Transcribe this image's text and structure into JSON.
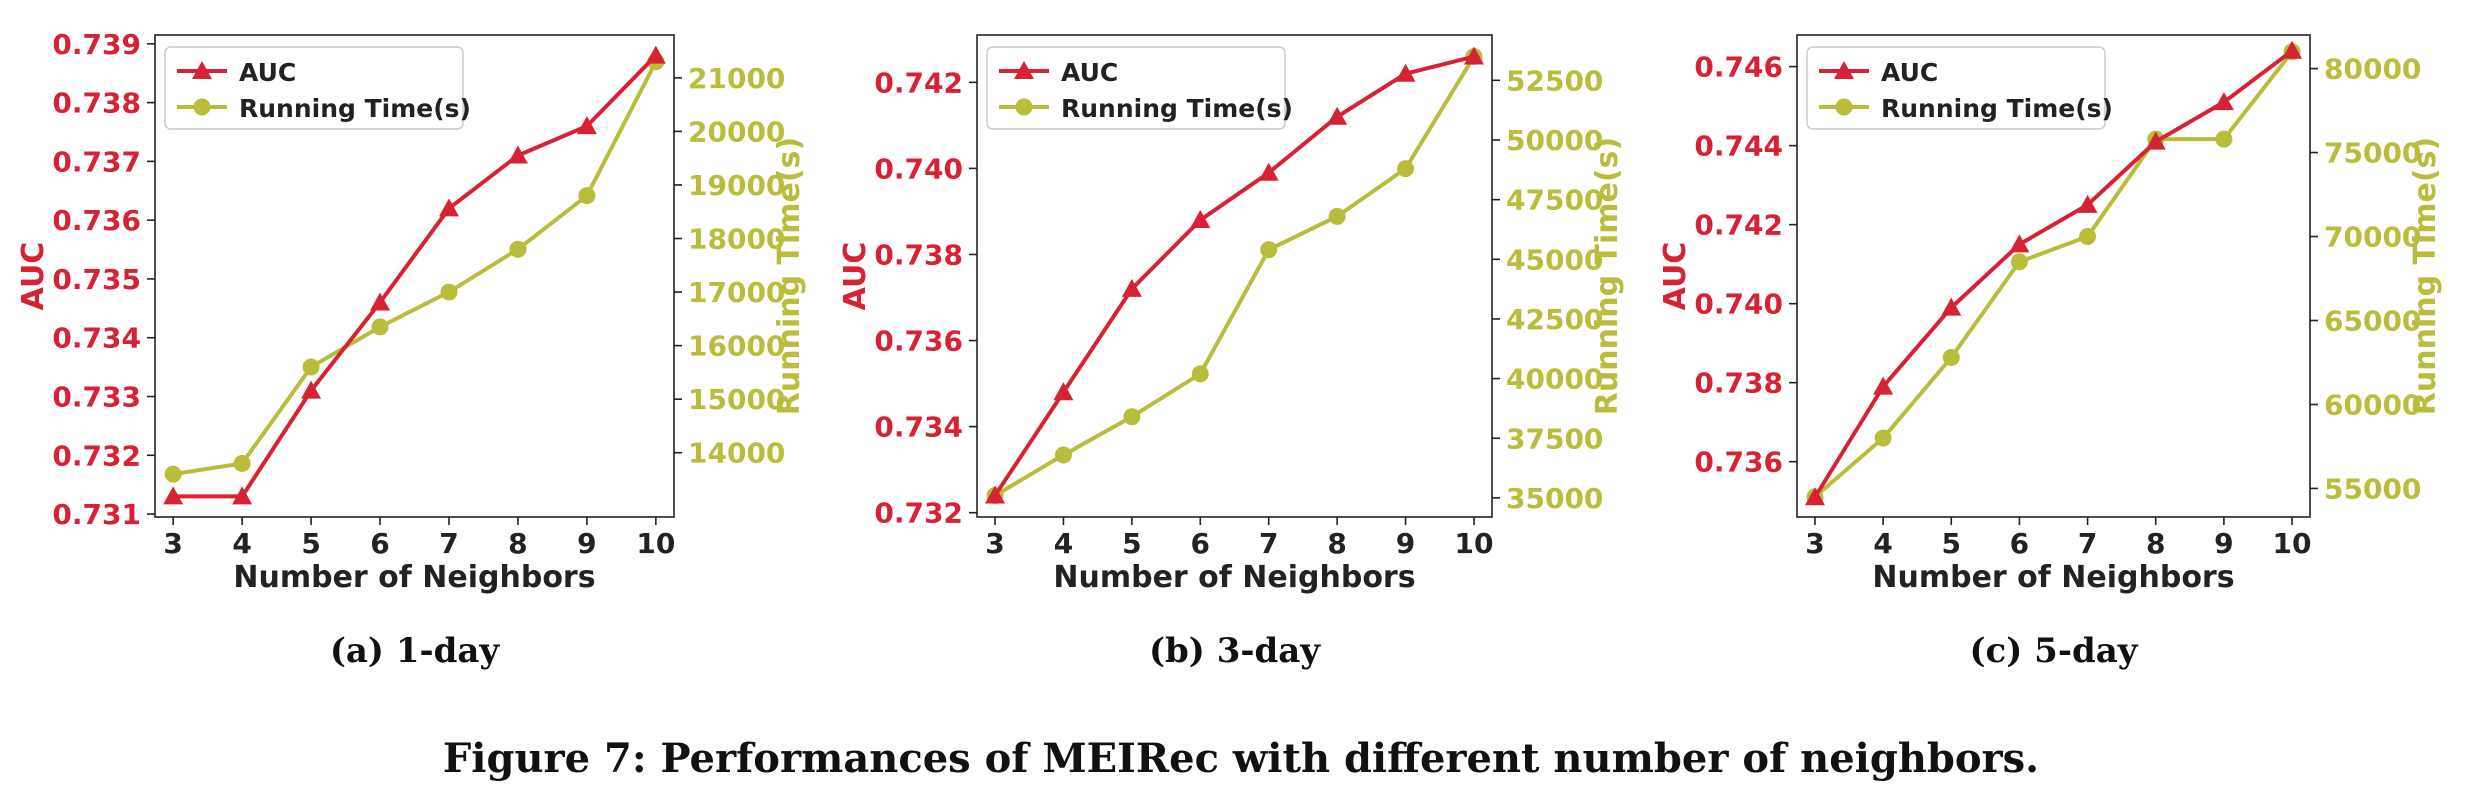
{
  "figure_caption": "Figure 7: Performances of MEIRec with different number of neighbors.",
  "colors": {
    "auc": "#d62233",
    "time": "#b9bd3b",
    "axis": "#222222"
  },
  "chart_data": [
    {
      "type": "line",
      "subcaption": "(a) 1-day",
      "xlabel": "Number of Neighbors",
      "ylabel_left": "AUC",
      "ylabel_right": "Running Time(s)",
      "legend": [
        "AUC",
        "Running Time(s)"
      ],
      "legend_position": "upper-left",
      "x": [
        3,
        4,
        5,
        6,
        7,
        8,
        9,
        10
      ],
      "xticks": [
        "3",
        "4",
        "5",
        "6",
        "7",
        "8",
        "9",
        "10"
      ],
      "series": [
        {
          "name": "AUC",
          "axis": "left",
          "marker": "triangle",
          "values": [
            0.7313,
            0.7313,
            0.7331,
            0.7346,
            0.7362,
            0.7371,
            0.7376,
            0.7388
          ]
        },
        {
          "name": "Running Time(s)",
          "axis": "right",
          "marker": "circle",
          "values": [
            13600,
            13800,
            15600,
            16350,
            17000,
            17800,
            18800,
            21300
          ]
        }
      ],
      "ylim_left": [
        0.73095,
        0.73915
      ],
      "yticks_left": [
        "0.731",
        "0.732",
        "0.733",
        "0.734",
        "0.735",
        "0.736",
        "0.737",
        "0.738",
        "0.739"
      ],
      "ylim_right": [
        12800,
        21800
      ],
      "yticks_right": [
        "14000",
        "15000",
        "16000",
        "17000",
        "18000",
        "19000",
        "20000",
        "21000"
      ]
    },
    {
      "type": "line",
      "subcaption": "(b) 3-day",
      "xlabel": "Number of Neighbors",
      "ylabel_left": "AUC",
      "ylabel_right": "Running Time(s)",
      "legend": [
        "AUC",
        "Running Time(s)"
      ],
      "legend_position": "upper-left",
      "x": [
        3,
        4,
        5,
        6,
        7,
        8,
        9,
        10
      ],
      "xticks": [
        "3",
        "4",
        "5",
        "6",
        "7",
        "8",
        "9",
        "10"
      ],
      "series": [
        {
          "name": "AUC",
          "axis": "left",
          "marker": "triangle",
          "values": [
            0.7324,
            0.7348,
            0.7372,
            0.7388,
            0.7399,
            0.7412,
            0.7422,
            0.7426
          ]
        },
        {
          "name": "Running Time(s)",
          "axis": "right",
          "marker": "circle",
          "values": [
            35100,
            36800,
            38400,
            40200,
            45400,
            46800,
            48800,
            53500
          ]
        }
      ],
      "ylim_left": [
        0.7319,
        0.7431
      ],
      "yticks_left": [
        "0.732",
        "0.734",
        "0.736",
        "0.738",
        "0.740",
        "0.742"
      ],
      "ylim_right": [
        34200,
        54400
      ],
      "yticks_right": [
        "35000",
        "37500",
        "40000",
        "42500",
        "45000",
        "47500",
        "50000",
        "52500"
      ]
    },
    {
      "type": "line",
      "subcaption": "(c) 5-day",
      "xlabel": "Number of Neighbors",
      "ylabel_left": "AUC",
      "ylabel_right": "Running Time(s)",
      "legend": [
        "AUC",
        "Running Time(s)"
      ],
      "legend_position": "upper-left",
      "x": [
        3,
        4,
        5,
        6,
        7,
        8,
        9,
        10
      ],
      "xticks": [
        "3",
        "4",
        "5",
        "6",
        "7",
        "8",
        "9",
        "10"
      ],
      "series": [
        {
          "name": "AUC",
          "axis": "left",
          "marker": "triangle",
          "values": [
            0.7351,
            0.7379,
            0.7399,
            0.7415,
            0.7425,
            0.7441,
            0.7451,
            0.7464
          ]
        },
        {
          "name": "Running Time(s)",
          "axis": "right",
          "marker": "circle",
          "values": [
            54500,
            58000,
            62800,
            68500,
            70000,
            75800,
            75800,
            81000
          ]
        }
      ],
      "ylim_left": [
        0.7346,
        0.7468
      ],
      "yticks_left": [
        "0.736",
        "0.738",
        "0.740",
        "0.742",
        "0.744",
        "0.746"
      ],
      "ylim_right": [
        53300,
        82000
      ],
      "yticks_right": [
        "55000",
        "60000",
        "65000",
        "70000",
        "75000",
        "80000"
      ]
    }
  ]
}
